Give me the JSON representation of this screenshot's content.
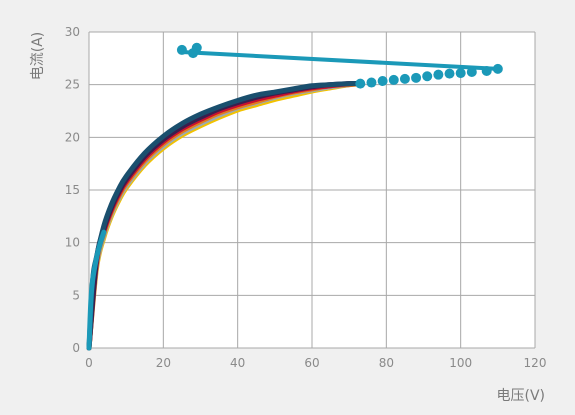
{
  "chart_data": {
    "type": "line",
    "xlabel": "电压(V)",
    "ylabel": "电流(A)",
    "xlim": [
      0,
      120
    ],
    "ylim": [
      0,
      30
    ],
    "x_ticks": [
      0,
      20,
      40,
      60,
      80,
      100,
      120
    ],
    "y_ticks": [
      0,
      5,
      10,
      15,
      20,
      25,
      30
    ],
    "grid": true,
    "curves": [
      {
        "color": "#f2c200",
        "points": [
          [
            0,
            0
          ],
          [
            2,
            7.5
          ],
          [
            4,
            10.5
          ],
          [
            6,
            12.5
          ],
          [
            8,
            14.0
          ],
          [
            10,
            15.2
          ],
          [
            15,
            17.4
          ],
          [
            20,
            19.0
          ],
          [
            25,
            20.2
          ],
          [
            30,
            21.1
          ],
          [
            35,
            21.9
          ],
          [
            40,
            22.6
          ],
          [
            45,
            23.1
          ],
          [
            50,
            23.6
          ],
          [
            55,
            24.0
          ],
          [
            60,
            24.4
          ],
          [
            65,
            24.7
          ],
          [
            70,
            25.0
          ],
          [
            73,
            25.1
          ]
        ]
      },
      {
        "color": "#9aa9b3",
        "points": [
          [
            0,
            0
          ],
          [
            2,
            7.7
          ],
          [
            4,
            10.7
          ],
          [
            6,
            12.7
          ],
          [
            8,
            14.2
          ],
          [
            10,
            15.4
          ],
          [
            15,
            17.6
          ],
          [
            20,
            19.2
          ],
          [
            25,
            20.4
          ],
          [
            30,
            21.3
          ],
          [
            35,
            22.1
          ],
          [
            40,
            22.8
          ],
          [
            45,
            23.3
          ],
          [
            50,
            23.8
          ],
          [
            55,
            24.2
          ],
          [
            60,
            24.5
          ],
          [
            65,
            24.8
          ],
          [
            70,
            25.0
          ],
          [
            73,
            25.1
          ]
        ]
      },
      {
        "color": "#e07b1f",
        "points": [
          [
            0,
            0
          ],
          [
            2,
            7.9
          ],
          [
            4,
            10.9
          ],
          [
            6,
            12.9
          ],
          [
            8,
            14.4
          ],
          [
            10,
            15.6
          ],
          [
            15,
            17.8
          ],
          [
            20,
            19.4
          ],
          [
            25,
            20.6
          ],
          [
            30,
            21.5
          ],
          [
            35,
            22.3
          ],
          [
            40,
            22.9
          ],
          [
            45,
            23.4
          ],
          [
            50,
            23.9
          ],
          [
            55,
            24.3
          ],
          [
            60,
            24.6
          ],
          [
            65,
            24.9
          ],
          [
            70,
            25.0
          ],
          [
            73,
            25.1
          ]
        ]
      },
      {
        "color": "#c8102e",
        "points": [
          [
            0,
            0
          ],
          [
            2,
            8.1
          ],
          [
            4,
            11.1
          ],
          [
            6,
            13.1
          ],
          [
            8,
            14.6
          ],
          [
            10,
            15.8
          ],
          [
            15,
            18.0
          ],
          [
            20,
            19.6
          ],
          [
            25,
            20.8
          ],
          [
            30,
            21.7
          ],
          [
            35,
            22.5
          ],
          [
            40,
            23.1
          ],
          [
            45,
            23.6
          ],
          [
            50,
            24.0
          ],
          [
            55,
            24.4
          ],
          [
            60,
            24.7
          ],
          [
            65,
            24.9
          ],
          [
            70,
            25.1
          ],
          [
            73,
            25.1
          ]
        ]
      },
      {
        "color": "#3a1f4e",
        "points": [
          [
            0,
            0
          ],
          [
            2,
            8.3
          ],
          [
            4,
            11.3
          ],
          [
            6,
            13.3
          ],
          [
            8,
            14.8
          ],
          [
            10,
            16.0
          ],
          [
            15,
            18.2
          ],
          [
            20,
            19.8
          ],
          [
            25,
            21.0
          ],
          [
            30,
            21.9
          ],
          [
            35,
            22.7
          ],
          [
            40,
            23.3
          ],
          [
            45,
            23.8
          ],
          [
            50,
            24.2
          ],
          [
            55,
            24.5
          ],
          [
            60,
            24.8
          ],
          [
            65,
            25.0
          ],
          [
            70,
            25.1
          ],
          [
            73,
            25.1
          ]
        ]
      },
      {
        "color": "#1a4f6e",
        "points": [
          [
            0,
            0
          ],
          [
            1,
            6.5
          ],
          [
            2,
            8.6
          ],
          [
            4,
            11.6
          ],
          [
            6,
            13.6
          ],
          [
            8,
            15.1
          ],
          [
            10,
            16.3
          ],
          [
            15,
            18.5
          ],
          [
            20,
            20.1
          ],
          [
            25,
            21.3
          ],
          [
            30,
            22.2
          ],
          [
            35,
            22.9
          ],
          [
            40,
            23.5
          ],
          [
            45,
            24.0
          ],
          [
            50,
            24.3
          ],
          [
            55,
            24.6
          ],
          [
            60,
            24.9
          ],
          [
            65,
            25.0
          ],
          [
            70,
            25.1
          ],
          [
            73,
            25.1
          ]
        ]
      },
      {
        "color": "#1b99b8",
        "points": [
          [
            0,
            0
          ],
          [
            0.5,
            4.5
          ],
          [
            1,
            6.5
          ],
          [
            2,
            8.5
          ],
          [
            3,
            9.9
          ],
          [
            4,
            11.0
          ]
        ]
      }
    ],
    "scatter_series": [
      {
        "color": "#1b99b8",
        "points": [
          [
            73,
            25.1
          ],
          [
            76,
            25.2
          ],
          [
            79,
            25.35
          ],
          [
            82,
            25.45
          ],
          [
            85,
            25.55
          ],
          [
            88,
            25.65
          ],
          [
            91,
            25.8
          ],
          [
            94,
            25.95
          ],
          [
            97,
            26.05
          ],
          [
            100,
            26.1
          ],
          [
            103,
            26.2
          ],
          [
            107,
            26.3
          ],
          [
            110,
            26.5
          ]
        ]
      },
      {
        "color": "#1b99b8",
        "points": [
          [
            25,
            28.3
          ],
          [
            29,
            28.5
          ],
          [
            28,
            28.0
          ]
        ]
      }
    ],
    "line_segments": [
      {
        "color": "#1b99b8",
        "from": [
          25,
          28.1
        ],
        "to": [
          110,
          26.5
        ]
      }
    ]
  }
}
